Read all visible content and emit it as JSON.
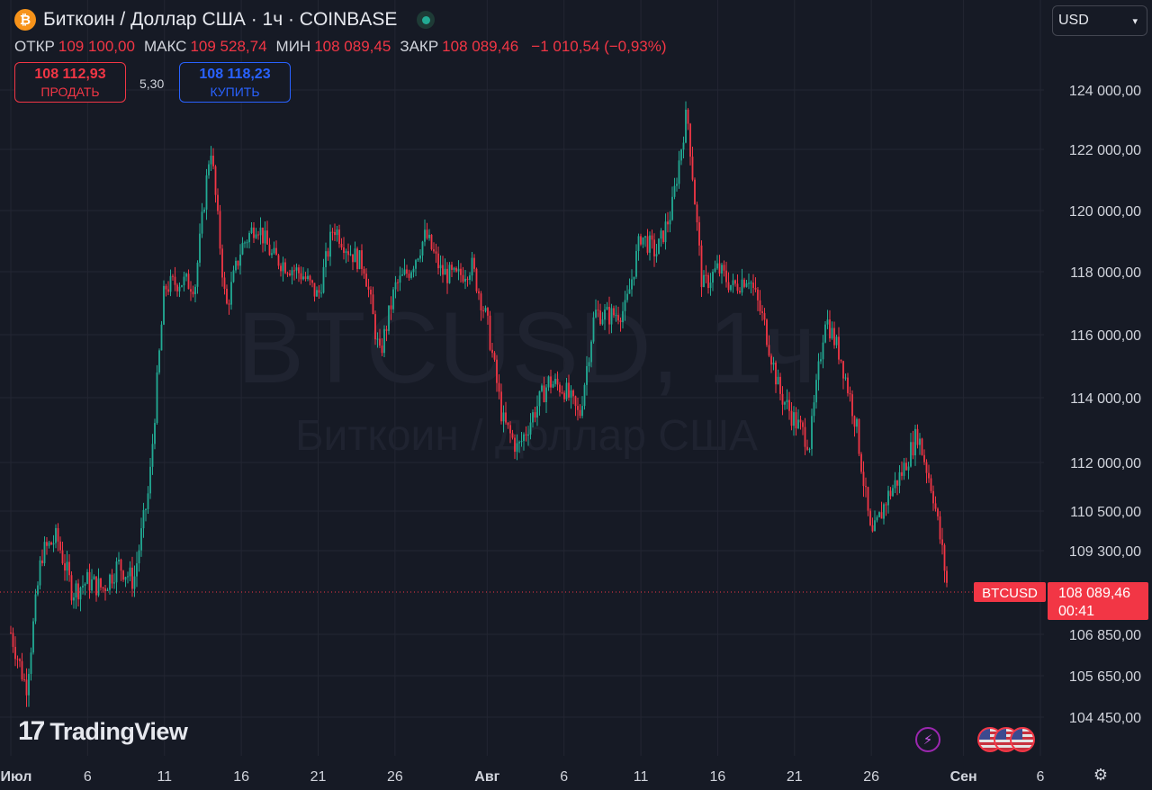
{
  "header": {
    "coin_symbol": "₿",
    "title": "Биткоин / Доллар США · 1ч · COINBASE",
    "ohlc": [
      {
        "key": "ОТКР",
        "value": "109 100,00"
      },
      {
        "key": "МАКС",
        "value": "109 528,74"
      },
      {
        "key": "МИН",
        "value": "108 089,45"
      },
      {
        "key": "ЗАКР",
        "value": "108 089,46"
      },
      {
        "key": "",
        "value": "−1 010,54 (−0,93%)"
      }
    ],
    "sell": {
      "price": "108 112,93",
      "label": "ПРОДАТЬ"
    },
    "buy": {
      "price": "108 118,23",
      "label": "КУПИТЬ"
    },
    "spread": "5,30",
    "currency": "USD"
  },
  "branding": {
    "logo_mark": "17",
    "logo_text": "TradingView"
  },
  "colors": {
    "up": "#22ab94",
    "down": "#f23645",
    "background": "#161a25",
    "grid": "#232632",
    "axis_text": "#d1d4dc"
  },
  "icons": {
    "lightning": "lightning-icon",
    "flags": "us-flag-icon",
    "settings": "gear-icon"
  },
  "chart_data": {
    "type": "candlestick",
    "watermark": {
      "symbol": "BTCUSD, 1ч",
      "description": "Биткоин / Доллар США"
    },
    "y_ticks": [
      124000,
      122000,
      120000,
      118000,
      116000,
      114000,
      112000,
      110500,
      109300,
      106850,
      105650,
      104450
    ],
    "y_tick_labels": [
      "124 000,00",
      "122 000,00",
      "120 000,00",
      "118 000,00",
      "116 000,00",
      "114 000,00",
      "112 000,00",
      "110 500,00",
      "109 300,00",
      "106 850,00",
      "105 650,00",
      "104 450,00"
    ],
    "x_ticks": [
      {
        "date": "2025-07-01",
        "label": "Июл"
      },
      {
        "date": "2025-07-06",
        "label": "6"
      },
      {
        "date": "2025-07-11",
        "label": "11"
      },
      {
        "date": "2025-07-16",
        "label": "16"
      },
      {
        "date": "2025-07-21",
        "label": "21"
      },
      {
        "date": "2025-07-26",
        "label": "26"
      },
      {
        "date": "2025-08-01",
        "label": "Авг"
      },
      {
        "date": "2025-08-06",
        "label": "6"
      },
      {
        "date": "2025-08-11",
        "label": "11"
      },
      {
        "date": "2025-08-16",
        "label": "16"
      },
      {
        "date": "2025-08-21",
        "label": "21"
      },
      {
        "date": "2025-08-26",
        "label": "26"
      },
      {
        "date": "2025-09-01",
        "label": "Сен"
      },
      {
        "date": "2025-09-06",
        "label": "6"
      }
    ],
    "x_range": [
      "2025-07-01",
      "2025-09-06"
    ],
    "last_price": {
      "symbol": "BTCUSD",
      "value": 108089.46,
      "label": "108 089,46",
      "countdown": "00:41"
    },
    "series": [
      {
        "date": "2025-07-01",
        "value": 106900
      },
      {
        "date": "2025-07-02",
        "value": 105300
      },
      {
        "date": "2025-07-03",
        "value": 109200
      },
      {
        "date": "2025-07-04",
        "value": 109700
      },
      {
        "date": "2025-07-05",
        "value": 108100
      },
      {
        "date": "2025-07-06",
        "value": 108400
      },
      {
        "date": "2025-07-07",
        "value": 108200
      },
      {
        "date": "2025-07-08",
        "value": 108900
      },
      {
        "date": "2025-07-09",
        "value": 108400
      },
      {
        "date": "2025-07-10",
        "value": 111200
      },
      {
        "date": "2025-07-11",
        "value": 117500
      },
      {
        "date": "2025-07-12",
        "value": 117700
      },
      {
        "date": "2025-07-13",
        "value": 117600
      },
      {
        "date": "2025-07-14",
        "value": 122200
      },
      {
        "date": "2025-07-15",
        "value": 116800
      },
      {
        "date": "2025-07-16",
        "value": 118800
      },
      {
        "date": "2025-07-17",
        "value": 119600
      },
      {
        "date": "2025-07-18",
        "value": 118500
      },
      {
        "date": "2025-07-19",
        "value": 118200
      },
      {
        "date": "2025-07-20",
        "value": 117900
      },
      {
        "date": "2025-07-21",
        "value": 117200
      },
      {
        "date": "2025-07-22",
        "value": 119500
      },
      {
        "date": "2025-07-23",
        "value": 118700
      },
      {
        "date": "2025-07-24",
        "value": 118200
      },
      {
        "date": "2025-07-25",
        "value": 115300
      },
      {
        "date": "2025-07-26",
        "value": 117500
      },
      {
        "date": "2025-07-27",
        "value": 118100
      },
      {
        "date": "2025-07-28",
        "value": 119200
      },
      {
        "date": "2025-07-29",
        "value": 118000
      },
      {
        "date": "2025-07-30",
        "value": 117800
      },
      {
        "date": "2025-07-31",
        "value": 118200
      },
      {
        "date": "2025-08-01",
        "value": 116400
      },
      {
        "date": "2025-08-02",
        "value": 113300
      },
      {
        "date": "2025-08-03",
        "value": 112400
      },
      {
        "date": "2025-08-04",
        "value": 113500
      },
      {
        "date": "2025-08-05",
        "value": 114500
      },
      {
        "date": "2025-08-06",
        "value": 114300
      },
      {
        "date": "2025-08-07",
        "value": 113400
      },
      {
        "date": "2025-08-08",
        "value": 116700
      },
      {
        "date": "2025-08-09",
        "value": 116600
      },
      {
        "date": "2025-08-10",
        "value": 116800
      },
      {
        "date": "2025-08-11",
        "value": 119200
      },
      {
        "date": "2025-08-12",
        "value": 118600
      },
      {
        "date": "2025-08-13",
        "value": 120000
      },
      {
        "date": "2025-08-14",
        "value": 123300
      },
      {
        "date": "2025-08-15",
        "value": 117500
      },
      {
        "date": "2025-08-16",
        "value": 118100
      },
      {
        "date": "2025-08-17",
        "value": 117500
      },
      {
        "date": "2025-08-18",
        "value": 117900
      },
      {
        "date": "2025-08-19",
        "value": 116400
      },
      {
        "date": "2025-08-20",
        "value": 114200
      },
      {
        "date": "2025-08-21",
        "value": 113300
      },
      {
        "date": "2025-08-22",
        "value": 112600
      },
      {
        "date": "2025-08-23",
        "value": 116600
      },
      {
        "date": "2025-08-24",
        "value": 115300
      },
      {
        "date": "2025-08-25",
        "value": 113200
      },
      {
        "date": "2025-08-26",
        "value": 109600
      },
      {
        "date": "2025-08-27",
        "value": 110900
      },
      {
        "date": "2025-08-28",
        "value": 111700
      },
      {
        "date": "2025-08-29",
        "value": 112900
      },
      {
        "date": "2025-08-30",
        "value": 111100
      },
      {
        "date": "2025-08-31",
        "value": 108090
      }
    ]
  }
}
